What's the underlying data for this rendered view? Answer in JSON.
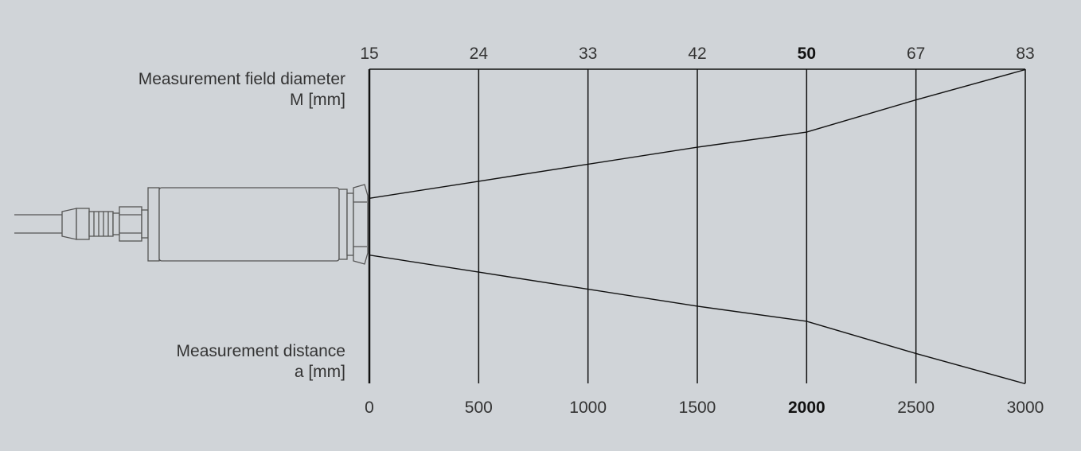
{
  "labels": {
    "diameter_line1": "Measurement field diameter",
    "diameter_line2": "M [mm]",
    "distance_line1": "Measurement distance",
    "distance_line2": "a [mm]"
  },
  "chart_data": {
    "type": "line",
    "x": [
      0,
      500,
      1000,
      1500,
      2000,
      2500,
      3000
    ],
    "x_tick_labels": [
      "0",
      "500",
      "1000",
      "1500",
      "2000",
      "2500",
      "3000"
    ],
    "diameter_tick_labels": [
      "15",
      "24",
      "33",
      "42",
      "50",
      "67",
      "83"
    ],
    "series": [
      {
        "values": [
          15,
          24,
          33,
          42,
          50,
          67,
          83
        ]
      }
    ],
    "highlight_index": 4,
    "grid": true
  },
  "colors": {
    "background": "#d0d4d8",
    "line": "#111111",
    "text": "#333333"
  },
  "icons": {
    "sensor": "pyrometer-sensor-icon"
  }
}
